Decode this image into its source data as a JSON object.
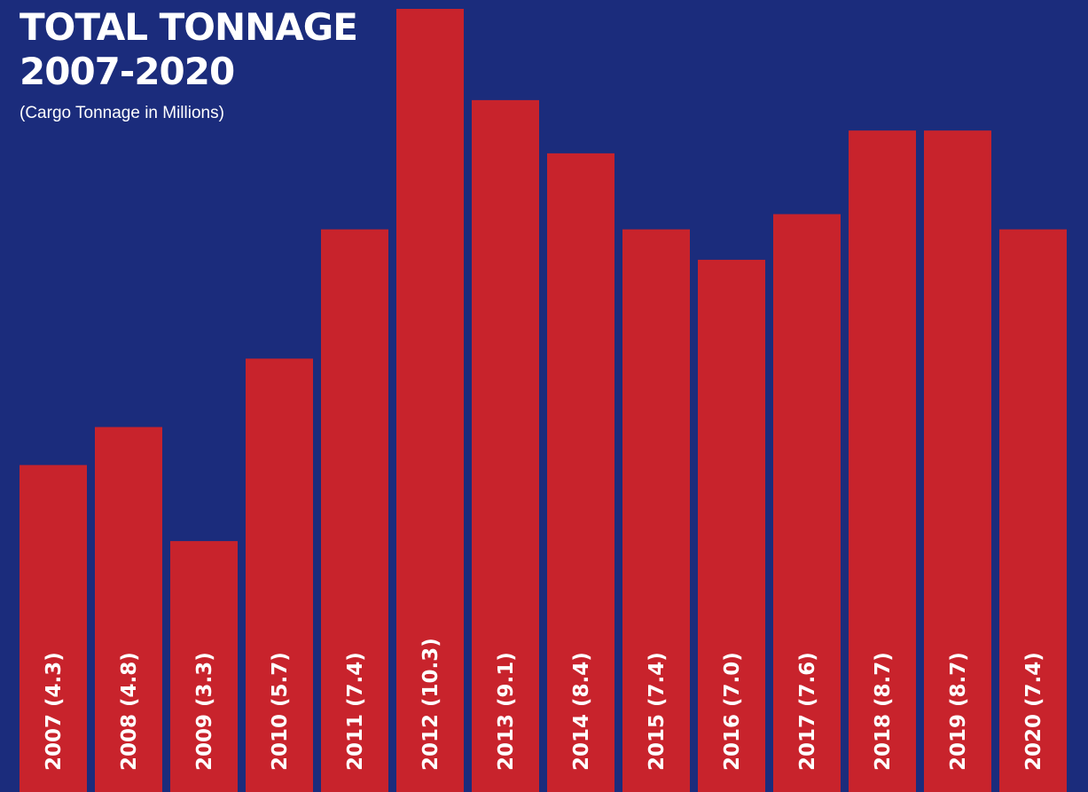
{
  "chart_data": {
    "type": "bar",
    "title": "TOTAL TONNAGE\n2007-2020",
    "title_lines": [
      "TOTAL TONNAGE",
      "2007-2020"
    ],
    "subtitle": "(Cargo Tonnage in Millions)",
    "categories": [
      "2007",
      "2008",
      "2009",
      "2010",
      "2011",
      "2012",
      "2013",
      "2014",
      "2015",
      "2016",
      "2017",
      "2018",
      "2019",
      "2020"
    ],
    "values": [
      4.3,
      4.8,
      3.3,
      5.7,
      7.4,
      10.3,
      9.1,
      8.4,
      7.4,
      7.0,
      7.6,
      8.7,
      8.7,
      7.4
    ],
    "bar_labels": [
      "2007 (4.3)",
      "2008 (4.8)",
      "2009 (3.3)",
      "2010 (5.7)",
      "2011 (7.4)",
      "2012 (10.3)",
      "2013 (9.1)",
      "2014 (8.4)",
      "2015 (7.4)",
      "2016 (7.0)",
      "2017 (7.6)",
      "2018 (8.7)",
      "2019 (8.7)",
      "2020 (7.4)"
    ],
    "xlabel": "",
    "ylabel": "",
    "ylim": [
      0,
      10.3
    ],
    "grid": false,
    "legend": "none",
    "colors": {
      "background": "#1b2c7c",
      "bar": "#c8232c",
      "text": "#ffffff"
    }
  }
}
